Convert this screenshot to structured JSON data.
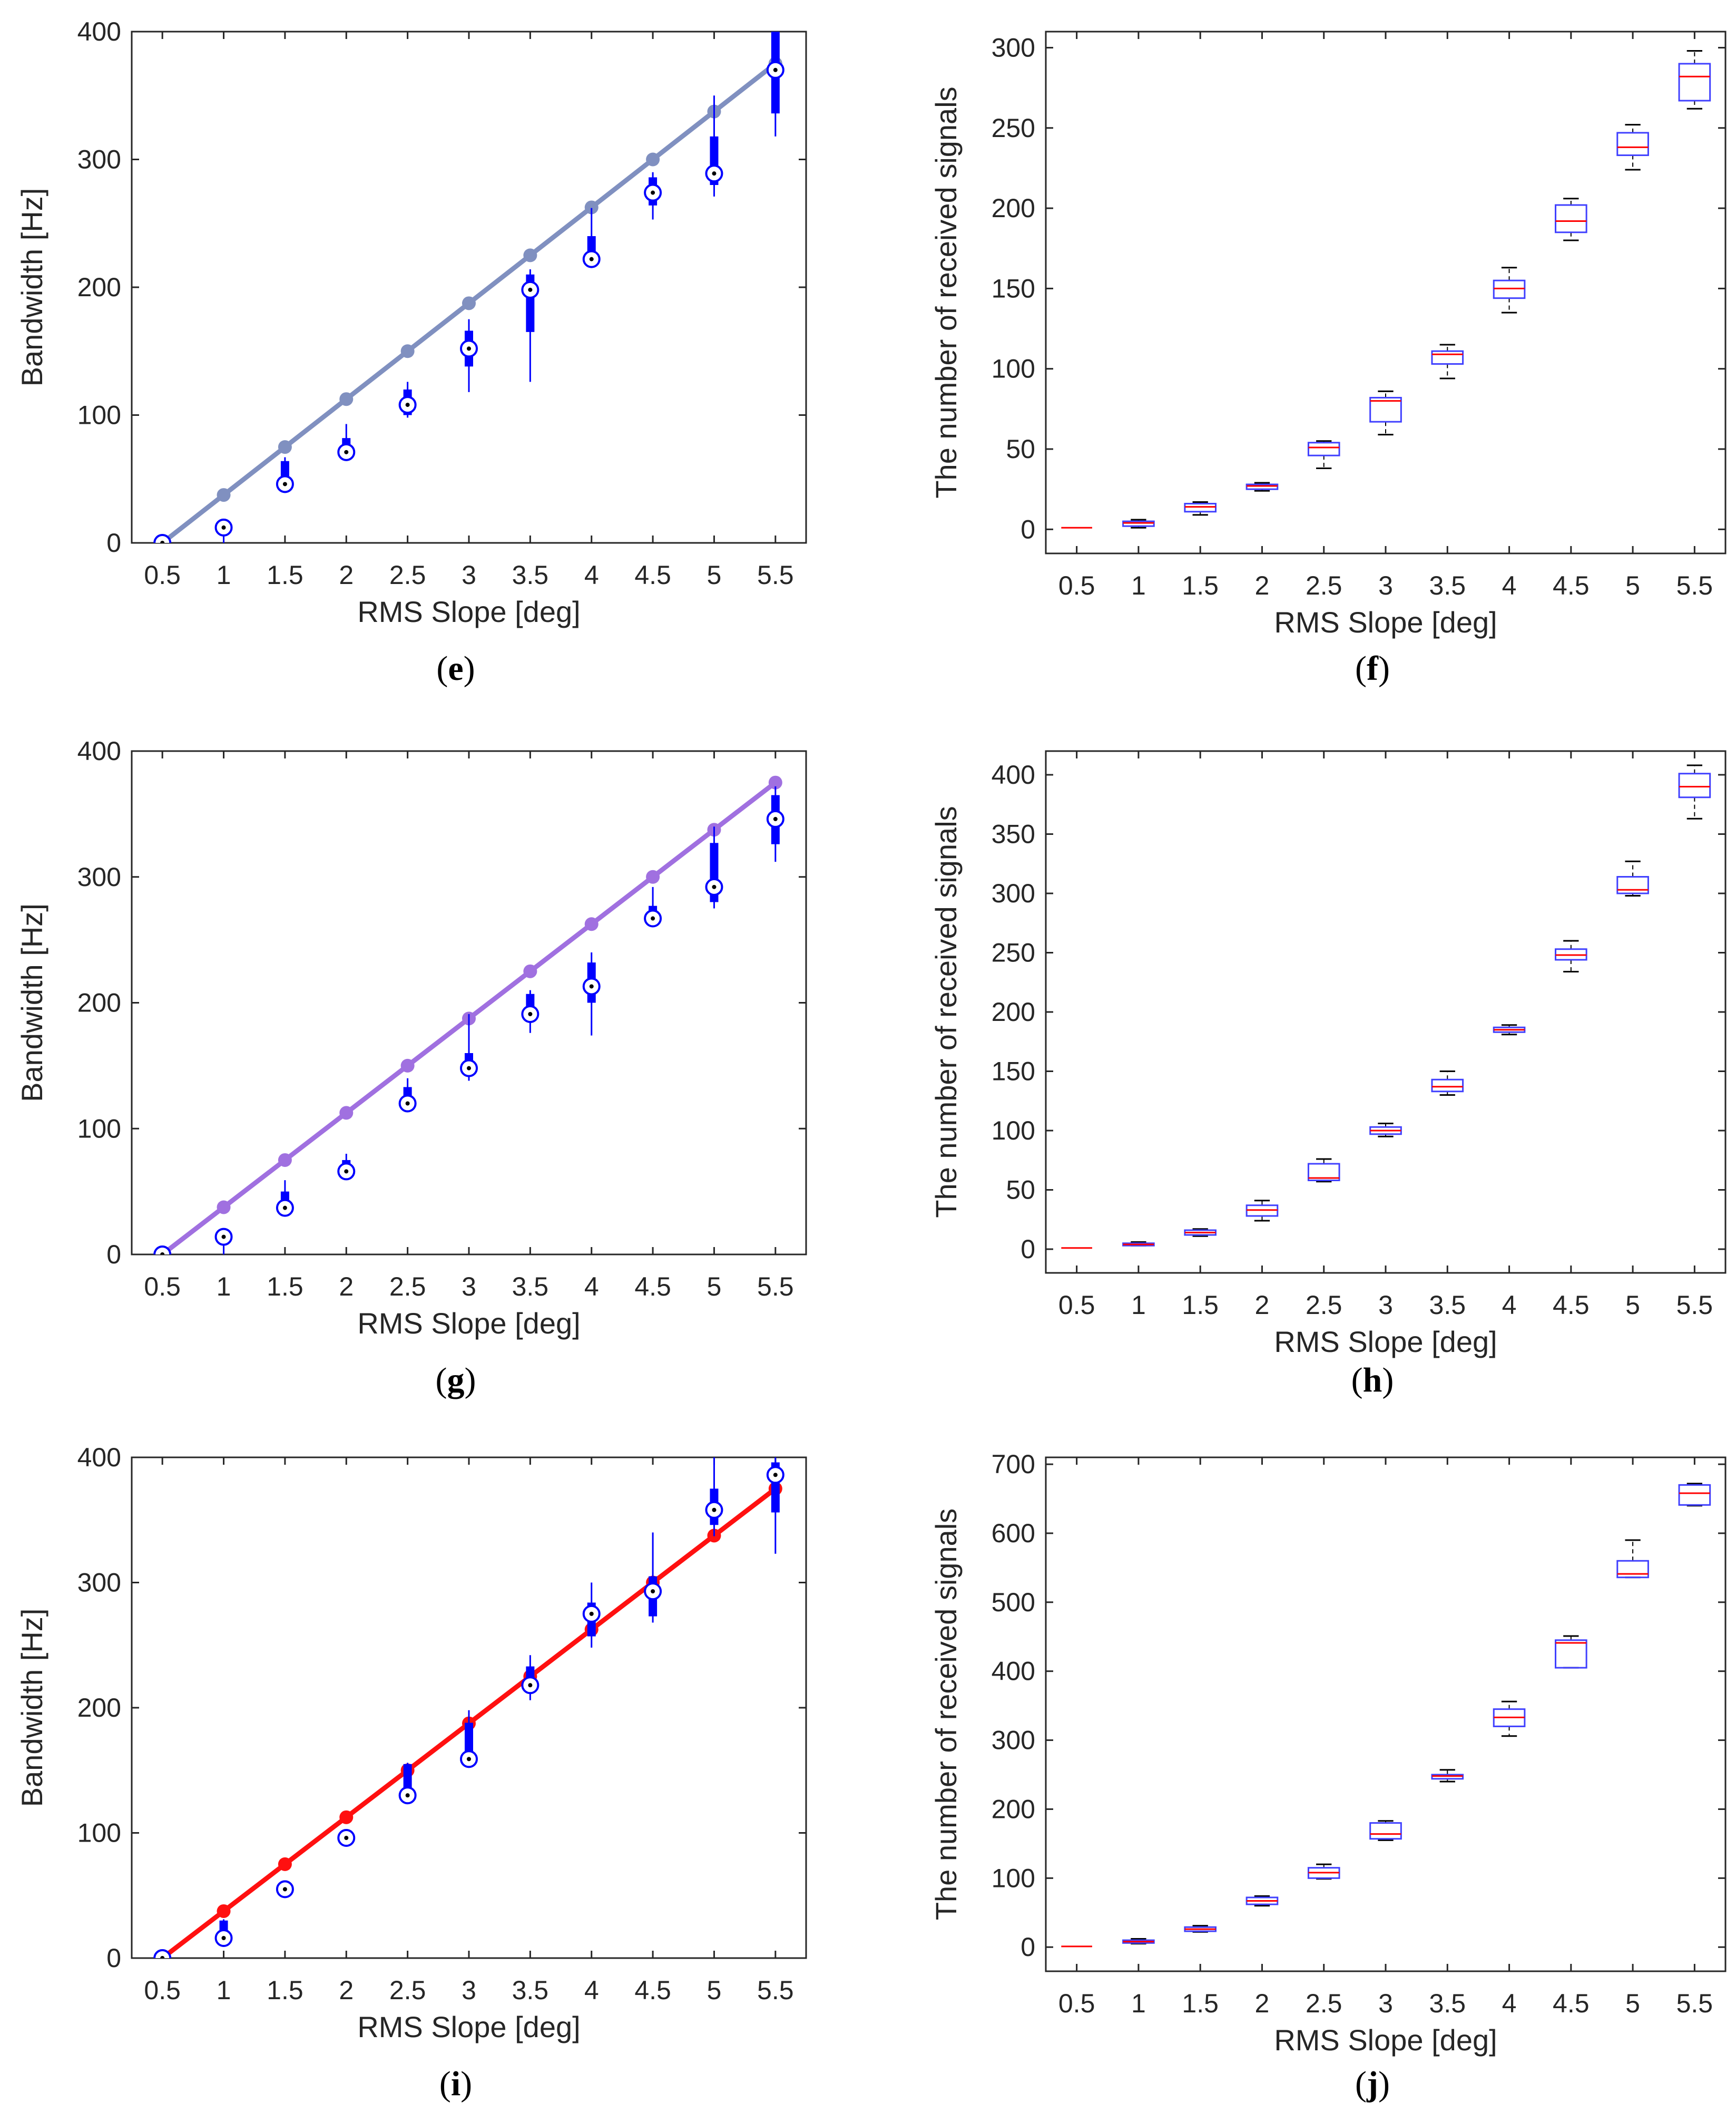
{
  "figure": {
    "panel_prefix": "(",
    "panel_suffix": ")"
  },
  "colors": {
    "box_fill": "#0000ff",
    "box_outline": "#4040ff",
    "median": "#ff0000",
    "whisker": "#000000",
    "axis": "#262626"
  },
  "chart_data": [
    {
      "id": "e",
      "panel_label": "e",
      "type": "box-with-line",
      "xlabel": "RMS Slope [deg]",
      "ylabel": "Bandwidth [Hz]",
      "categories": [
        "0.5",
        "1",
        "1.5",
        "2",
        "2.5",
        "3",
        "3.5",
        "4",
        "4.5",
        "5",
        "5.5"
      ],
      "ylim": [
        0,
        400
      ],
      "yticks": [
        0,
        100,
        200,
        300,
        400
      ],
      "line_color": "#8090c0",
      "theory": [
        0,
        37.5,
        75,
        112.5,
        150,
        187.5,
        225,
        262.5,
        300,
        337.5,
        375
      ],
      "medians": [
        0,
        12,
        46,
        71,
        108,
        152,
        198,
        222,
        274,
        289,
        370
      ],
      "boxes": [
        [
          0,
          0
        ],
        [
          0,
          0
        ],
        [
          46,
          64
        ],
        [
          71,
          82
        ],
        [
          100,
          120
        ],
        [
          138,
          166
        ],
        [
          165,
          210
        ],
        [
          222,
          240
        ],
        [
          264,
          286
        ],
        [
          280,
          318
        ],
        [
          336,
          400
        ]
      ],
      "whiskers": [
        [
          0,
          0
        ],
        [
          0,
          15
        ],
        [
          45,
          67
        ],
        [
          70,
          93
        ],
        [
          98,
          126
        ],
        [
          118,
          175
        ],
        [
          126,
          214
        ],
        [
          220,
          262
        ],
        [
          253,
          290
        ],
        [
          271,
          350
        ],
        [
          318,
          400
        ]
      ]
    },
    {
      "id": "f",
      "panel_label": "f",
      "type": "box",
      "xlabel": "RMS Slope [deg]",
      "ylabel": "The number of received signals",
      "categories": [
        "0.5",
        "1",
        "1.5",
        "2",
        "2.5",
        "3",
        "3.5",
        "4",
        "4.5",
        "5",
        "5.5"
      ],
      "ylim": [
        -15,
        310
      ],
      "yticks": [
        0,
        50,
        100,
        150,
        200,
        250,
        300
      ],
      "medians": [
        1,
        4,
        14,
        27,
        51,
        80,
        109,
        150,
        192,
        238,
        282
      ],
      "boxes": [
        [
          1,
          1
        ],
        [
          2,
          5
        ],
        [
          11,
          16
        ],
        [
          25,
          28
        ],
        [
          46,
          54
        ],
        [
          67,
          82
        ],
        [
          103,
          111
        ],
        [
          144,
          155
        ],
        [
          185,
          202
        ],
        [
          233,
          247
        ],
        [
          267,
          290
        ]
      ],
      "whiskers": [
        [
          1,
          1
        ],
        [
          1,
          6
        ],
        [
          9,
          17
        ],
        [
          24,
          29
        ],
        [
          38,
          55
        ],
        [
          59,
          86
        ],
        [
          94,
          115
        ],
        [
          135,
          163
        ],
        [
          180,
          206
        ],
        [
          224,
          252
        ],
        [
          262,
          298
        ]
      ]
    },
    {
      "id": "g",
      "panel_label": "g",
      "type": "box-with-line",
      "xlabel": "RMS Slope [deg]",
      "ylabel": "Bandwidth [Hz]",
      "categories": [
        "0.5",
        "1",
        "1.5",
        "2",
        "2.5",
        "3",
        "3.5",
        "4",
        "4.5",
        "5",
        "5.5"
      ],
      "ylim": [
        0,
        400
      ],
      "yticks": [
        0,
        100,
        200,
        300,
        400
      ],
      "line_color": "#a070e0",
      "theory": [
        0,
        37.5,
        75,
        112.5,
        150,
        187.5,
        225,
        262.5,
        300,
        337.5,
        375
      ],
      "medians": [
        0,
        14,
        37,
        66,
        120,
        148,
        191,
        213,
        267,
        292,
        346
      ],
      "boxes": [
        [
          0,
          0
        ],
        [
          0,
          0
        ],
        [
          37,
          50
        ],
        [
          64,
          75
        ],
        [
          120,
          133
        ],
        [
          148,
          160
        ],
        [
          191,
          207
        ],
        [
          200,
          232
        ],
        [
          267,
          277
        ],
        [
          280,
          327
        ],
        [
          326,
          365
        ]
      ],
      "whiskers": [
        [
          0,
          0
        ],
        [
          0,
          14
        ],
        [
          36,
          59
        ],
        [
          62,
          80
        ],
        [
          114,
          140
        ],
        [
          138,
          191
        ],
        [
          176,
          210
        ],
        [
          174,
          240
        ],
        [
          262,
          292
        ],
        [
          275,
          340
        ],
        [
          312,
          372
        ]
      ]
    },
    {
      "id": "h",
      "panel_label": "h",
      "type": "box",
      "xlabel": "RMS Slope [deg]",
      "ylabel": "The number of received signals",
      "categories": [
        "0.5",
        "1",
        "1.5",
        "2",
        "2.5",
        "3",
        "3.5",
        "4",
        "4.5",
        "5",
        "5.5"
      ],
      "ylim": [
        -20,
        420
      ],
      "yticks": [
        0,
        50,
        100,
        150,
        200,
        250,
        300,
        350,
        400
      ],
      "medians": [
        1,
        4,
        14,
        33,
        60,
        100,
        137,
        185,
        248,
        303,
        390
      ],
      "boxes": [
        [
          1,
          1
        ],
        [
          3,
          5
        ],
        [
          12,
          16
        ],
        [
          28,
          37
        ],
        [
          58,
          72
        ],
        [
          97,
          103
        ],
        [
          133,
          143
        ],
        [
          183,
          187
        ],
        [
          244,
          253
        ],
        [
          300,
          314
        ],
        [
          381,
          401
        ]
      ],
      "whiskers": [
        [
          1,
          1
        ],
        [
          3,
          6
        ],
        [
          11,
          17
        ],
        [
          24,
          41
        ],
        [
          57,
          76
        ],
        [
          95,
          106
        ],
        [
          130,
          150
        ],
        [
          181,
          189
        ],
        [
          234,
          260
        ],
        [
          298,
          327
        ],
        [
          363,
          408
        ]
      ]
    },
    {
      "id": "i",
      "panel_label": "i",
      "type": "box-with-line",
      "xlabel": "RMS Slope [deg]",
      "ylabel": "Bandwidth [Hz]",
      "categories": [
        "0.5",
        "1",
        "1.5",
        "2",
        "2.5",
        "3",
        "3.5",
        "4",
        "4.5",
        "5",
        "5.5"
      ],
      "ylim": [
        0,
        400
      ],
      "yticks": [
        0,
        100,
        200,
        300,
        400
      ],
      "line_color": "#ff1010",
      "theory": [
        0,
        37.5,
        75,
        112.5,
        150,
        187.5,
        225,
        262.5,
        300,
        337.5,
        375
      ],
      "medians": [
        0,
        16,
        55,
        96,
        130,
        159,
        218,
        275,
        293,
        358,
        386
      ],
      "boxes": [
        [
          0,
          0
        ],
        [
          16,
          30
        ],
        [
          53,
          59
        ],
        [
          93,
          99
        ],
        [
          129,
          155
        ],
        [
          159,
          188
        ],
        [
          216,
          233
        ],
        [
          257,
          284
        ],
        [
          273,
          305
        ],
        [
          346,
          375
        ],
        [
          356,
          396
        ]
      ],
      "whiskers": [
        [
          0,
          0
        ],
        [
          10,
          31
        ],
        [
          50,
          60
        ],
        [
          89,
          101
        ],
        [
          126,
          156
        ],
        [
          152,
          198
        ],
        [
          206,
          242
        ],
        [
          248,
          300
        ],
        [
          268,
          340
        ],
        [
          337,
          400
        ],
        [
          323,
          400
        ]
      ]
    },
    {
      "id": "j",
      "panel_label": "j",
      "type": "box",
      "xlabel": "RMS Slope [deg]",
      "ylabel": "The number of received signals",
      "categories": [
        "0.5",
        "1",
        "1.5",
        "2",
        "2.5",
        "3",
        "3.5",
        "4",
        "4.5",
        "5",
        "5.5"
      ],
      "ylim": [
        -35,
        710
      ],
      "yticks": [
        0,
        100,
        200,
        300,
        400,
        500,
        600,
        700
      ],
      "medians": [
        1,
        8,
        26,
        67,
        108,
        164,
        248,
        333,
        441,
        541,
        658
      ],
      "boxes": [
        [
          1,
          1
        ],
        [
          6,
          10
        ],
        [
          23,
          29
        ],
        [
          62,
          72
        ],
        [
          100,
          115
        ],
        [
          157,
          180
        ],
        [
          244,
          250
        ],
        [
          320,
          345
        ],
        [
          405,
          445
        ],
        [
          536,
          560
        ],
        [
          641,
          670
        ]
      ],
      "whiskers": [
        [
          1,
          1
        ],
        [
          5,
          12
        ],
        [
          22,
          31
        ],
        [
          60,
          74
        ],
        [
          99,
          120
        ],
        [
          155,
          183
        ],
        [
          240,
          257
        ],
        [
          306,
          356
        ],
        [
          405,
          451
        ],
        [
          536,
          590
        ],
        [
          640,
          672
        ]
      ]
    }
  ]
}
